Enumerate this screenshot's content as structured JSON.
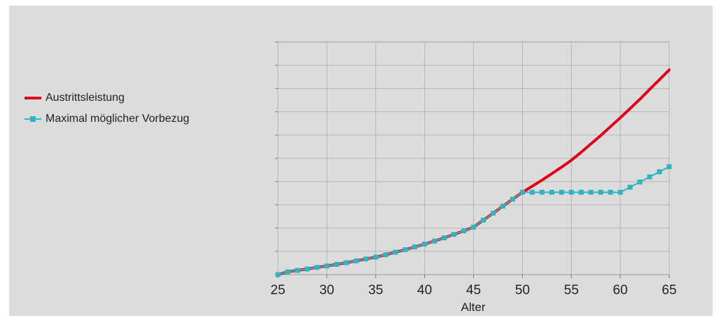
{
  "chart_data": {
    "type": "line",
    "xlabel": "Alter",
    "ylabel": "",
    "x_ticks": [
      25,
      30,
      35,
      40,
      45,
      50,
      55,
      60,
      65
    ],
    "xlim": [
      25,
      65
    ],
    "ylim": [
      0,
      10
    ],
    "grid": true,
    "legend_position": "left",
    "series": [
      {
        "name": "Austrittsleistung",
        "color": "#e0001b",
        "marker": "none",
        "x": [
          25,
          26,
          27,
          28,
          29,
          30,
          31,
          32,
          33,
          34,
          35,
          36,
          37,
          38,
          39,
          40,
          41,
          42,
          43,
          44,
          45,
          46,
          47,
          48,
          49,
          50,
          51,
          52,
          53,
          54,
          55,
          56,
          57,
          58,
          59,
          60,
          61,
          62,
          63,
          64,
          65
        ],
        "y": [
          0,
          0.12,
          0.18,
          0.24,
          0.31,
          0.37,
          0.44,
          0.51,
          0.59,
          0.67,
          0.75,
          0.85,
          0.96,
          1.07,
          1.19,
          1.31,
          1.44,
          1.58,
          1.73,
          1.88,
          2.04,
          2.34,
          2.64,
          2.94,
          3.24,
          3.54,
          3.8,
          4.06,
          4.34,
          4.62,
          4.92,
          5.26,
          5.62,
          5.98,
          6.36,
          6.74,
          7.14,
          7.54,
          7.96,
          8.38,
          8.8
        ]
      },
      {
        "name": "Maximal möglicher Vorbezug",
        "color": "#2eb5c0",
        "marker": "square",
        "x": [
          25,
          26,
          27,
          28,
          29,
          30,
          31,
          32,
          33,
          34,
          35,
          36,
          37,
          38,
          39,
          40,
          41,
          42,
          43,
          44,
          45,
          46,
          47,
          48,
          49,
          50,
          51,
          52,
          53,
          54,
          55,
          56,
          57,
          58,
          59,
          60,
          61,
          62,
          63,
          64,
          65
        ],
        "y": [
          0,
          0.12,
          0.18,
          0.24,
          0.31,
          0.37,
          0.44,
          0.51,
          0.59,
          0.67,
          0.75,
          0.85,
          0.96,
          1.07,
          1.19,
          1.31,
          1.44,
          1.58,
          1.73,
          1.88,
          2.04,
          2.34,
          2.64,
          2.94,
          3.24,
          3.54,
          3.54,
          3.54,
          3.54,
          3.54,
          3.54,
          3.54,
          3.54,
          3.54,
          3.54,
          3.54,
          3.76,
          3.98,
          4.2,
          4.42,
          4.64
        ]
      }
    ]
  }
}
